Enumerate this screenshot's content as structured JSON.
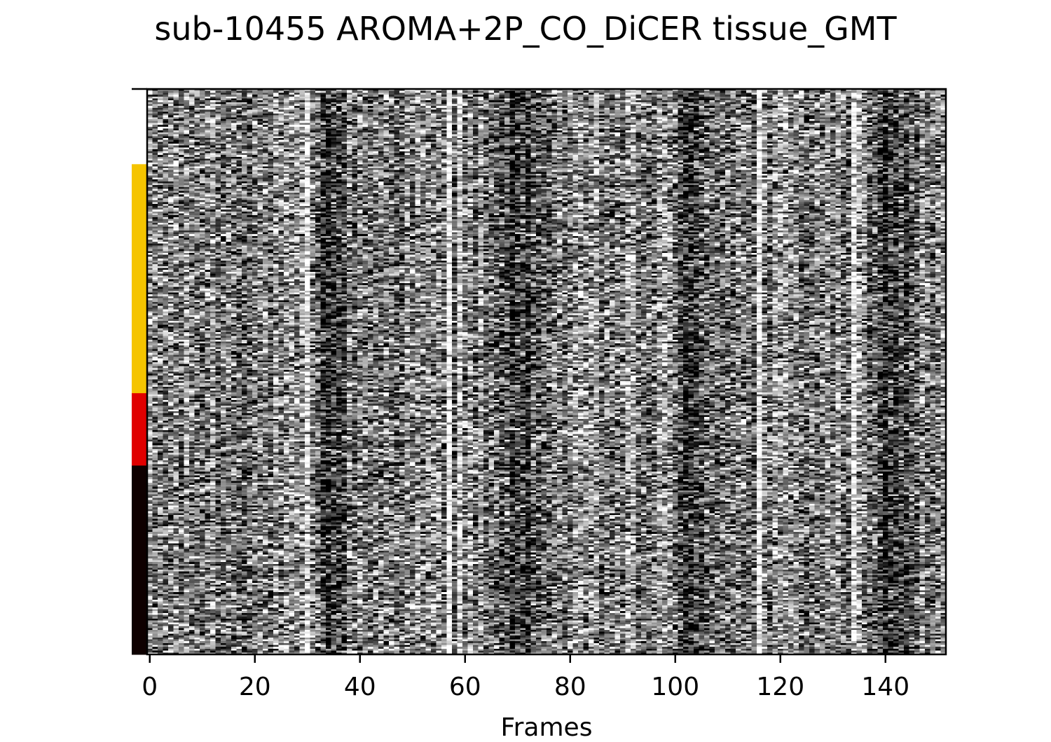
{
  "chart_data": {
    "type": "heatmap",
    "title": "sub-10455 AROMA+2P_CO_DiCER tissue_GMT",
    "xlabel": "Frames",
    "ylabel": "",
    "colormap": "grayscale",
    "xlim": [
      -0.5,
      151.5
    ],
    "x_ticks": [
      0,
      20,
      40,
      60,
      80,
      100,
      120,
      140
    ],
    "n_frames": 152,
    "tissue_bar": [
      {
        "color": "#ffffff",
        "fraction": 0.133
      },
      {
        "color": "#f5c400",
        "fraction": 0.405
      },
      {
        "color": "#e00000",
        "fraction": 0.128
      },
      {
        "color": "#0e0000",
        "fraction": 0.334
      }
    ],
    "dark_frame_bands": [
      [
        31,
        38
      ],
      [
        64,
        76
      ],
      [
        100,
        108
      ],
      [
        136,
        146
      ]
    ],
    "bright_frames": [
      30,
      57,
      59,
      116,
      134
    ]
  }
}
